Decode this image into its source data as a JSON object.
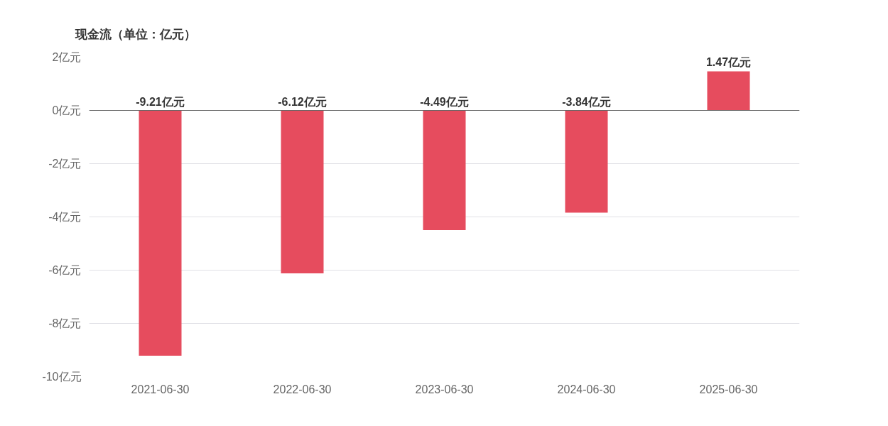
{
  "chart_data": {
    "type": "bar",
    "title": "现金流（单位：亿元）",
    "categories": [
      "2021-06-30",
      "2022-06-30",
      "2023-06-30",
      "2024-06-30",
      "2025-06-30"
    ],
    "values": [
      -9.21,
      -6.12,
      -4.49,
      -3.84,
      1.47
    ],
    "value_labels": [
      "-9.21亿元",
      "-6.12亿元",
      "-4.49亿元",
      "-3.84亿元",
      "1.47亿元"
    ],
    "color": "#e64c5e",
    "ylim": [
      -10,
      2
    ],
    "yticks": [
      {
        "value": -10,
        "label": "-10亿元"
      },
      {
        "value": -8,
        "label": "-8亿元"
      },
      {
        "value": -6,
        "label": "-6亿元"
      },
      {
        "value": -4,
        "label": "-4亿元"
      },
      {
        "value": -2,
        "label": "-2亿元"
      },
      {
        "value": 0,
        "label": "0亿元"
      },
      {
        "value": 2,
        "label": "2亿元"
      }
    ],
    "grid": "y"
  }
}
